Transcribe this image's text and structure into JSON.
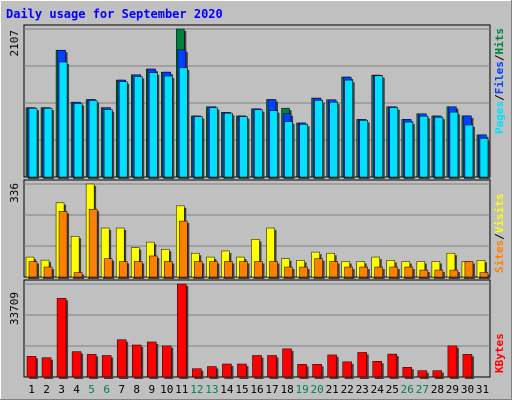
{
  "chart_data": {
    "type": "bar",
    "title": "Daily usage for September 2020",
    "days": [
      "1",
      "2",
      "3",
      "4",
      "5",
      "6",
      "7",
      "8",
      "9",
      "10",
      "11",
      "12",
      "13",
      "14",
      "15",
      "16",
      "17",
      "18",
      "19",
      "20",
      "21",
      "22",
      "23",
      "24",
      "25",
      "26",
      "27",
      "28",
      "29",
      "30",
      "31"
    ],
    "weekend_days": [
      "5",
      "6",
      "12",
      "13",
      "19",
      "20",
      "26",
      "27"
    ],
    "colors": {
      "hits": "#008040",
      "files": "#0040ff",
      "pages": "#00e0ff",
      "visits": "#ffff00",
      "sites": "#ff8000",
      "kbytes": "#ff0000",
      "weekday_label": "#000000",
      "weekend_label": "#00805c",
      "title": "#0000ff"
    },
    "panels": {
      "hits_files_pages": {
        "max_label": "2107",
        "ymax": 2107,
        "legend": {
          "pages": "Pages",
          "files": "Files",
          "hits": "Hits",
          "sep": "/"
        },
        "series": [
          {
            "name": "Hits",
            "values": [
              987,
              987,
              1805,
              1065,
              1103,
              987,
              1380,
              1455,
              1537,
              1493,
              2107,
              869,
              1000,
              920,
              869,
              970,
              1103,
              980,
              769,
              1123,
              1100,
              1423,
              820,
              1450,
              1000,
              820,
              900,
              869,
              1000,
              870,
              600
            ]
          },
          {
            "name": "Files",
            "values": [
              987,
              987,
              1805,
              1065,
              1103,
              987,
              1380,
              1455,
              1537,
              1493,
              1810,
              869,
              1000,
              920,
              869,
              970,
              1103,
              900,
              769,
              1123,
              1100,
              1423,
              820,
              1450,
              1000,
              820,
              900,
              869,
              1000,
              870,
              600
            ]
          },
          {
            "name": "Pages",
            "values": [
              978,
              978,
              1637,
              1046,
              1089,
              958,
              1356,
              1429,
              1484,
              1437,
              1554,
              859,
              987,
              908,
              859,
              958,
              944,
              787,
              751,
              1089,
              1065,
              1379,
              805,
              1441,
              987,
              782,
              866,
              851,
              923,
              740,
              549
            ]
          }
        ]
      },
      "visits_sites": {
        "max_label": "336",
        "ymax": 336,
        "legend": {
          "sites": "Sites",
          "visits": "Visits",
          "sep": "/"
        },
        "series": [
          {
            "name": "Visits",
            "values": [
              72,
              61,
              268,
              147,
              336,
              177,
              177,
              106,
              126,
              100,
              257,
              86,
              72,
              94,
              72,
              136,
              177,
              66,
              60,
              90,
              86,
              56,
              56,
              72,
              60,
              56,
              56,
              56,
              86,
              56,
              60
            ]
          },
          {
            "name": "Sites",
            "values": [
              56,
              36,
              237,
              16,
              245,
              66,
              56,
              56,
              76,
              56,
              202,
              56,
              56,
              56,
              56,
              56,
              56,
              36,
              36,
              66,
              56,
              36,
              36,
              36,
              36,
              36,
              25,
              25,
              25,
              56,
              16
            ]
          }
        ]
      },
      "kbytes": {
        "max_label": "33709",
        "ymax": 33709,
        "legend": {
          "kbytes": "KBytes"
        },
        "series": [
          {
            "name": "KBytes",
            "values": [
              7500,
              7000,
              28500,
              9200,
              8200,
              7800,
              13500,
              11600,
              12700,
              11300,
              33709,
              3000,
              3800,
              4700,
              4700,
              7800,
              7800,
              10200,
              4600,
              4600,
              8000,
              5500,
              8900,
              5700,
              8300,
              3500,
              2300,
              2300,
              11300,
              8200,
              0
            ]
          }
        ]
      }
    }
  }
}
